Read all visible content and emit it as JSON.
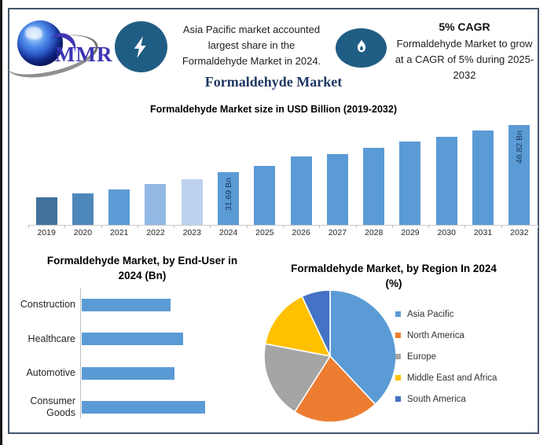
{
  "frame": {
    "border_color": "#44546a"
  },
  "header": {
    "logo": {
      "text": "MMR"
    },
    "asia_note": {
      "line1": "Asia Pacific market accounted",
      "line2": "largest share in the",
      "line3": "Formaldehyde Market in 2024."
    },
    "cagr_note": {
      "title": "5% CAGR",
      "line1": "Formaldehyde Market to grow",
      "line2": "at a CAGR of 5% during 2025-",
      "line3": "2032"
    }
  },
  "main_title": "Formaldehyde Market",
  "colors": {
    "accent_bar": "#5b9bd5",
    "icon_circle": "#205d84",
    "title_navy": "#1f3864",
    "bar_label_navy": "#17375e"
  },
  "chart_data": [
    {
      "type": "bar",
      "title": "Formaldehyde Market size in USD Billion (2019-2032)",
      "categories": [
        "2019",
        "2020",
        "2021",
        "2022",
        "2023",
        "2024",
        "2025",
        "2026",
        "2027",
        "2028",
        "2029",
        "2030",
        "2031",
        "2032"
      ],
      "values": [
        23.8,
        24.9,
        26.3,
        28.0,
        29.4,
        31.69,
        33.8,
        36.8,
        37.5,
        39.6,
        41.5,
        43.1,
        45.0,
        46.82
      ],
      "bar_labels": [
        "",
        "",
        "",
        "",
        "",
        "31.69 Bn",
        "",
        "",
        "",
        "",
        "",
        "",
        "",
        "46.82 Bn"
      ],
      "bar_colors": [
        "#41719c",
        "#4e87ba",
        "#5b9bd5",
        "#92b9e4",
        "#bdd2ec",
        "#5b9bd5",
        "#5b9bd5",
        "#5b9bd5",
        "#5b9bd5",
        "#5b9bd5",
        "#5b9bd5",
        "#5b9bd5",
        "#5b9bd5",
        "#5b9bd5"
      ],
      "ylabel": "USD Billion",
      "ylim": [
        15,
        50
      ],
      "grid": false,
      "legend": false
    },
    {
      "type": "bar_horizontal",
      "title": "Formaldehyde Market, by End-User in 2024 (Bn)",
      "categories": [
        "Construction",
        "Healthcare",
        "Automotive",
        "Consumer Goods"
      ],
      "values": [
        7.2,
        8.2,
        7.5,
        10.0
      ],
      "bar_color": "#5b9bd5",
      "xlim": [
        0,
        14
      ],
      "grid": false,
      "legend": false
    },
    {
      "type": "pie",
      "title": "Formaldehyde Market, by Region In 2024 (%)",
      "labels": [
        "Asia Pacific",
        "North America",
        "Europe",
        "Middle East and Africa",
        "South America"
      ],
      "values": [
        38,
        21,
        19,
        15,
        7
      ],
      "colors": [
        "#5b9bd5",
        "#ed7d31",
        "#a5a5a5",
        "#ffc000",
        "#4472c4"
      ],
      "start_angle_deg": -90,
      "direction": "clockwise",
      "legend_position": "right"
    }
  ]
}
